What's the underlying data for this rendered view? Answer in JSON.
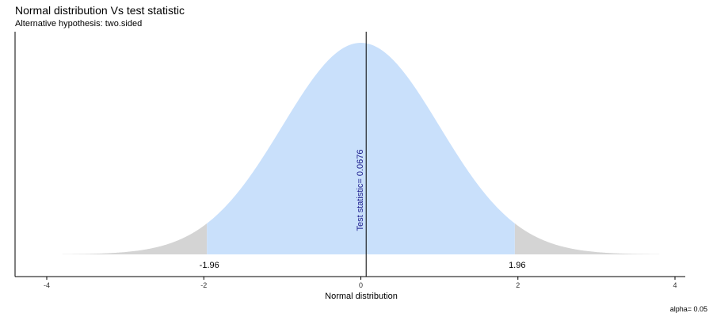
{
  "chart_data": {
    "type": "area",
    "title": "Normal distribution Vs test statistic",
    "subtitle": "Alternative hypothesis: two.sided",
    "xlabel": "Normal distribution",
    "ylabel": "",
    "caption": "alpha= 0.05",
    "xlim": [
      -4.0,
      4.0
    ],
    "curve_x_range": [
      -3.8,
      3.8
    ],
    "x_ticks": [
      -4,
      -2,
      0,
      2,
      4
    ],
    "x_tick_labels": [
      "-4",
      "-2",
      "0",
      "2",
      "4"
    ],
    "critical_values": [
      -1.96,
      1.96
    ],
    "critical_labels": [
      "-1.96",
      "1.96"
    ],
    "test_statistic": 0.0676,
    "test_statistic_label": "Test statistic= 0.0676",
    "grid": false,
    "legend": "none",
    "colors": {
      "acceptance_region": "#c9e0fb",
      "rejection_region": "#d4d4d4",
      "test_statistic_line": "#000000",
      "test_statistic_label": "#1a1a8c",
      "axis": "#000000"
    }
  }
}
